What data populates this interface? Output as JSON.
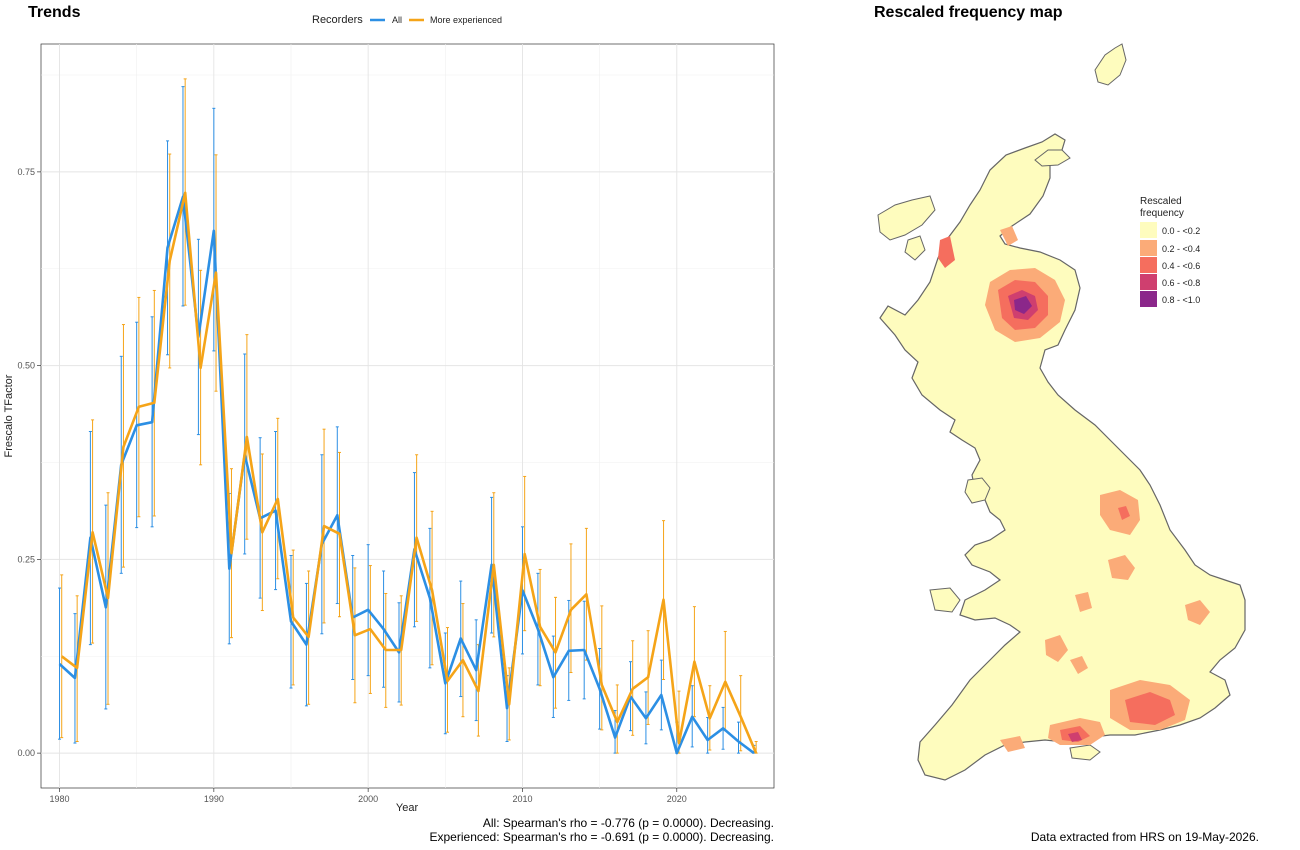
{
  "trends": {
    "title": "Trends",
    "caption_all": "All: Spearman's rho = -0.776 (p = 0.0000). Decreasing.",
    "caption_exp": "Experienced: Spearman's rho = -0.691 (p = 0.0000). Decreasing."
  },
  "chart_data": {
    "type": "line",
    "xlabel": "Year",
    "ylabel": "Frescalo TFactor",
    "xlim": [
      1978.8,
      2026.3
    ],
    "ylim": [
      -0.045,
      0.915
    ],
    "x_ticks": [
      1980,
      1990,
      2000,
      2010,
      2020
    ],
    "x_tick_labels": [
      "1980",
      "1990",
      "2000",
      "2010",
      "2020"
    ],
    "y_ticks": [
      0.0,
      0.25,
      0.5,
      0.75
    ],
    "y_tick_labels": [
      "0.00",
      "0.25",
      "0.50",
      "0.75"
    ],
    "legend_title": "Recorders",
    "legend_position": "top",
    "grid": true,
    "x": [
      1980,
      1981,
      1982,
      1983,
      1984,
      1985,
      1986,
      1987,
      1988,
      1989,
      1990,
      1991,
      1992,
      1993,
      1994,
      1995,
      1996,
      1997,
      1998,
      1999,
      2000,
      2001,
      2002,
      2003,
      2004,
      2005,
      2006,
      2007,
      2008,
      2009,
      2010,
      2011,
      2012,
      2013,
      2014,
      2015,
      2016,
      2017,
      2018,
      2019,
      2020,
      2021,
      2022,
      2023,
      2024,
      2025
    ],
    "series": [
      {
        "name": "All",
        "color": "#2c8fe4",
        "values": [
          0.115,
          0.097,
          0.278,
          0.188,
          0.372,
          0.423,
          0.427,
          0.652,
          0.718,
          0.537,
          0.674,
          0.238,
          0.385,
          0.303,
          0.313,
          0.17,
          0.14,
          0.27,
          0.307,
          0.175,
          0.185,
          0.16,
          0.13,
          0.263,
          0.2,
          0.09,
          0.148,
          0.107,
          0.243,
          0.058,
          0.21,
          0.16,
          0.098,
          0.132,
          0.133,
          0.083,
          0.02,
          0.073,
          0.045,
          0.075,
          0.0,
          0.047,
          0.017,
          0.032,
          0.015,
          0.0
        ],
        "lower": [
          0.018,
          0.013,
          0.14,
          0.057,
          0.232,
          0.291,
          0.292,
          0.514,
          0.577,
          0.411,
          0.519,
          0.141,
          0.257,
          0.2,
          0.211,
          0.084,
          0.061,
          0.154,
          0.193,
          0.095,
          0.1,
          0.085,
          0.066,
          0.163,
          0.11,
          0.025,
          0.073,
          0.042,
          0.155,
          0.015,
          0.128,
          0.088,
          0.046,
          0.068,
          0.07,
          0.031,
          0.0,
          0.029,
          0.012,
          0.03,
          0.0,
          0.008,
          0.0,
          0.005,
          0.0,
          0.0
        ],
        "upper": [
          0.213,
          0.18,
          0.415,
          0.32,
          0.512,
          0.556,
          0.563,
          0.79,
          0.86,
          0.663,
          0.832,
          0.335,
          0.515,
          0.407,
          0.415,
          0.255,
          0.219,
          0.385,
          0.421,
          0.255,
          0.269,
          0.235,
          0.194,
          0.362,
          0.29,
          0.155,
          0.222,
          0.172,
          0.33,
          0.1,
          0.292,
          0.232,
          0.151,
          0.197,
          0.196,
          0.135,
          0.055,
          0.118,
          0.079,
          0.12,
          0.04,
          0.087,
          0.046,
          0.059,
          0.04,
          0.01
        ]
      },
      {
        "name": "More experienced",
        "color": "#f5a418",
        "values": [
          0.125,
          0.11,
          0.285,
          0.2,
          0.395,
          0.447,
          0.452,
          0.635,
          0.723,
          0.497,
          0.62,
          0.258,
          0.408,
          0.285,
          0.328,
          0.175,
          0.15,
          0.293,
          0.283,
          0.152,
          0.16,
          0.133,
          0.133,
          0.278,
          0.21,
          0.093,
          0.12,
          0.08,
          0.243,
          0.063,
          0.257,
          0.163,
          0.13,
          0.185,
          0.205,
          0.088,
          0.04,
          0.083,
          0.098,
          0.198,
          0.013,
          0.118,
          0.045,
          0.092,
          0.047,
          0.0
        ],
        "lower": [
          0.02,
          0.015,
          0.142,
          0.063,
          0.24,
          0.305,
          0.306,
          0.497,
          0.578,
          0.372,
          0.467,
          0.149,
          0.276,
          0.184,
          0.225,
          0.088,
          0.063,
          0.168,
          0.176,
          0.065,
          0.077,
          0.059,
          0.062,
          0.17,
          0.114,
          0.027,
          0.047,
          0.022,
          0.15,
          0.017,
          0.158,
          0.087,
          0.058,
          0.104,
          0.12,
          0.03,
          0.0,
          0.023,
          0.037,
          0.095,
          0.0,
          0.047,
          0.004,
          0.029,
          0.003,
          0.0
        ],
        "upper": [
          0.23,
          0.203,
          0.43,
          0.336,
          0.553,
          0.588,
          0.597,
          0.773,
          0.87,
          0.623,
          0.772,
          0.367,
          0.54,
          0.386,
          0.432,
          0.262,
          0.235,
          0.418,
          0.388,
          0.239,
          0.242,
          0.206,
          0.203,
          0.385,
          0.312,
          0.162,
          0.193,
          0.14,
          0.336,
          0.11,
          0.357,
          0.237,
          0.201,
          0.27,
          0.29,
          0.19,
          0.088,
          0.145,
          0.158,
          0.3,
          0.08,
          0.189,
          0.087,
          0.157,
          0.1,
          0.015
        ]
      }
    ]
  },
  "map": {
    "title": "Rescaled frequency map",
    "legend_title_line1": "Rescaled",
    "legend_title_line2": "frequency",
    "legend": [
      {
        "label": "0.0 - <0.2",
        "color": "#fefcbe"
      },
      {
        "label": "0.2 - <0.4",
        "color": "#fbab78"
      },
      {
        "label": "0.4 - <0.6",
        "color": "#f56e5e"
      },
      {
        "label": "0.6 - <0.8",
        "color": "#cf3f6f"
      },
      {
        "label": "0.8 - <1.0",
        "color": "#8b278a"
      }
    ],
    "outline_color": "#666666",
    "footer": "Data extracted from HRS on 19-May-2026."
  }
}
